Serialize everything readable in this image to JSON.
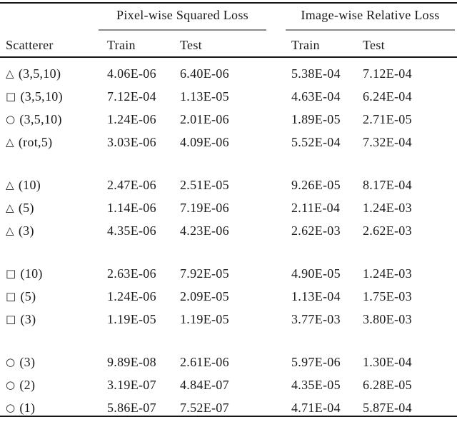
{
  "colors": {
    "background": "#ffffff",
    "text": "#1a1a1a",
    "heavy_rule": "#161616",
    "light_rule": "#8a8a8a"
  },
  "table": {
    "column_groups": [
      {
        "label": "Pixel-wise Squared Loss"
      },
      {
        "label": "Image-wise Relative Loss"
      }
    ],
    "sub_headers": {
      "scatterer": "Scatterer",
      "pixel_train": "Train",
      "pixel_test": "Test",
      "image_train": "Train",
      "image_test": "Test"
    },
    "groups": [
      {
        "rows": [
          {
            "shape": "△",
            "shape_name": "triangle",
            "label": "(3,5,10)",
            "values": [
              "4.06E-06",
              "6.40E-06",
              "5.38E-04",
              "7.12E-04"
            ]
          },
          {
            "shape": "□",
            "shape_name": "square",
            "label": "(3,5,10)",
            "values": [
              "7.12E-04",
              "1.13E-05",
              "4.63E-04",
              "6.24E-04"
            ]
          },
          {
            "shape": "○",
            "shape_name": "circle",
            "label": "(3,5,10)",
            "values": [
              "1.24E-06",
              "2.01E-06",
              "1.89E-05",
              "2.71E-05"
            ]
          },
          {
            "shape": "△",
            "shape_name": "triangle",
            "label": "(rot,5)",
            "values": [
              "3.03E-06",
              "4.09E-06",
              "5.52E-04",
              "7.32E-04"
            ]
          }
        ]
      },
      {
        "rows": [
          {
            "shape": "△",
            "shape_name": "triangle",
            "label": "(10)",
            "values": [
              "2.47E-06",
              "2.51E-05",
              "9.26E-05",
              "8.17E-04"
            ]
          },
          {
            "shape": "△",
            "shape_name": "triangle",
            "label": "(5)",
            "values": [
              "1.14E-06",
              "7.19E-06",
              "2.11E-04",
              "1.24E-03"
            ]
          },
          {
            "shape": "△",
            "shape_name": "triangle",
            "label": "(3)",
            "values": [
              "4.35E-06",
              "4.23E-06",
              "2.62E-03",
              "2.62E-03"
            ]
          }
        ]
      },
      {
        "rows": [
          {
            "shape": "□",
            "shape_name": "square",
            "label": "(10)",
            "values": [
              "2.63E-06",
              "7.92E-05",
              "4.90E-05",
              "1.24E-03"
            ]
          },
          {
            "shape": "□",
            "shape_name": "square",
            "label": "(5)",
            "values": [
              "1.24E-06",
              "2.09E-05",
              "1.13E-04",
              "1.75E-03"
            ]
          },
          {
            "shape": "□",
            "shape_name": "square",
            "label": "(3)",
            "values": [
              "1.19E-05",
              "1.19E-05",
              "3.77E-03",
              "3.80E-03"
            ]
          }
        ]
      },
      {
        "rows": [
          {
            "shape": "○",
            "shape_name": "circle",
            "label": "(3)",
            "values": [
              "9.89E-08",
              "2.61E-06",
              "5.97E-06",
              "1.30E-04"
            ]
          },
          {
            "shape": "○",
            "shape_name": "circle",
            "label": "(2)",
            "values": [
              "3.19E-07",
              "4.84E-07",
              "4.35E-05",
              "6.28E-05"
            ]
          },
          {
            "shape": "○",
            "shape_name": "circle",
            "label": "(1)",
            "values": [
              "5.86E-07",
              "7.52E-07",
              "4.71E-04",
              "5.87E-04"
            ]
          }
        ]
      }
    ]
  }
}
